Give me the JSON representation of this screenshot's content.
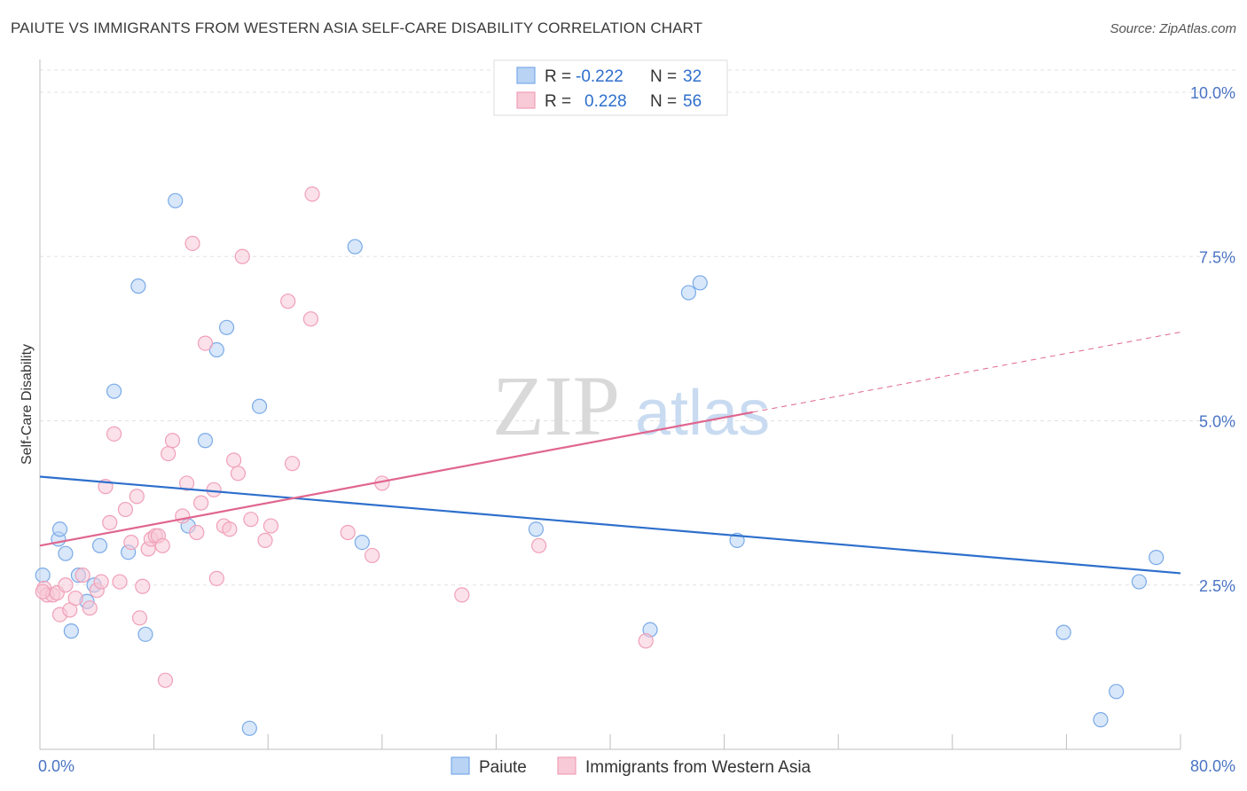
{
  "title": "PAIUTE VS IMMIGRANTS FROM WESTERN ASIA SELF-CARE DISABILITY CORRELATION CHART",
  "source": "Source: ZipAtlas.com",
  "watermark": {
    "zip": "ZIP",
    "atlas": "atlas"
  },
  "chart_data": {
    "type": "scatter",
    "ylabel": "Self-Care Disability",
    "xlim": [
      0,
      80
    ],
    "ylim": [
      0,
      10.5
    ],
    "x_ticks": [
      0,
      8,
      16,
      24,
      32,
      40,
      48,
      56,
      64,
      72,
      80
    ],
    "x_tick_labels": [
      {
        "value": 0,
        "label": "0.0%"
      },
      {
        "value": 80,
        "label": "80.0%"
      }
    ],
    "y_ticks": [
      {
        "value": 2.5,
        "label": "2.5%"
      },
      {
        "value": 5.0,
        "label": "5.0%"
      },
      {
        "value": 7.5,
        "label": "7.5%"
      },
      {
        "value": 10.0,
        "label": "10.0%"
      }
    ],
    "grid": true,
    "legend_position": "top-center",
    "series": [
      {
        "name": "Paiute",
        "color": "#7aaae8",
        "fill": "#b8d3f4",
        "line_color": "#2e6fcc",
        "R": "-0.222",
        "N": "32",
        "trend": {
          "x0": 0,
          "y0": 4.15,
          "x1": 80,
          "y1": 2.68,
          "solid_until": 80
        },
        "points": [
          [
            0.2,
            2.65
          ],
          [
            1.3,
            3.2
          ],
          [
            1.4,
            3.35
          ],
          [
            1.8,
            2.98
          ],
          [
            2.2,
            1.8
          ],
          [
            2.7,
            2.65
          ],
          [
            3.3,
            2.25
          ],
          [
            3.8,
            2.5
          ],
          [
            4.2,
            3.1
          ],
          [
            5.2,
            5.45
          ],
          [
            6.2,
            3.0
          ],
          [
            6.9,
            7.05
          ],
          [
            7.4,
            1.75
          ],
          [
            9.5,
            8.35
          ],
          [
            10.4,
            3.4
          ],
          [
            11.6,
            4.7
          ],
          [
            12.4,
            6.08
          ],
          [
            13.1,
            6.42
          ],
          [
            14.7,
            0.32
          ],
          [
            15.4,
            5.22
          ],
          [
            22.1,
            7.65
          ],
          [
            22.6,
            3.15
          ],
          [
            34.8,
            3.35
          ],
          [
            42.8,
            1.82
          ],
          [
            45.5,
            6.95
          ],
          [
            46.3,
            7.1
          ],
          [
            48.9,
            3.18
          ],
          [
            71.8,
            1.78
          ],
          [
            75.5,
            0.88
          ],
          [
            74.4,
            0.45
          ],
          [
            77.1,
            2.55
          ],
          [
            78.3,
            2.92
          ]
        ]
      },
      {
        "name": "Immigrants from Western Asia",
        "color": "#f0a0b8",
        "fill": "#f8c9d7",
        "line_color": "#e0668f",
        "R": "0.228",
        "N": "56",
        "trend": {
          "x0": 0,
          "y0": 3.1,
          "x1": 80,
          "y1": 6.35,
          "solid_until": 50
        },
        "points": [
          [
            0.3,
            2.45
          ],
          [
            0.5,
            2.35
          ],
          [
            0.9,
            2.35
          ],
          [
            1.2,
            2.38
          ],
          [
            1.4,
            2.05
          ],
          [
            1.8,
            2.5
          ],
          [
            2.1,
            2.12
          ],
          [
            2.5,
            2.3
          ],
          [
            3.0,
            2.65
          ],
          [
            3.5,
            2.15
          ],
          [
            4.0,
            2.42
          ],
          [
            4.3,
            2.55
          ],
          [
            4.6,
            4.0
          ],
          [
            4.9,
            3.45
          ],
          [
            5.2,
            4.8
          ],
          [
            5.6,
            2.55
          ],
          [
            6.0,
            3.65
          ],
          [
            6.4,
            3.15
          ],
          [
            6.8,
            3.85
          ],
          [
            7.0,
            2.0
          ],
          [
            7.2,
            2.48
          ],
          [
            7.6,
            3.05
          ],
          [
            7.8,
            3.2
          ],
          [
            8.1,
            3.25
          ],
          [
            8.3,
            3.25
          ],
          [
            8.6,
            3.1
          ],
          [
            8.8,
            1.05
          ],
          [
            9.0,
            4.5
          ],
          [
            9.3,
            4.7
          ],
          [
            10.0,
            3.55
          ],
          [
            10.3,
            4.05
          ],
          [
            10.7,
            7.7
          ],
          [
            11.0,
            3.3
          ],
          [
            11.3,
            3.75
          ],
          [
            11.6,
            6.18
          ],
          [
            12.2,
            3.95
          ],
          [
            12.4,
            2.6
          ],
          [
            12.9,
            3.4
          ],
          [
            13.3,
            3.35
          ],
          [
            13.6,
            4.4
          ],
          [
            13.9,
            4.2
          ],
          [
            14.2,
            7.5
          ],
          [
            14.8,
            3.5
          ],
          [
            15.8,
            3.18
          ],
          [
            16.2,
            3.4
          ],
          [
            17.4,
            6.82
          ],
          [
            17.7,
            4.35
          ],
          [
            19.0,
            6.55
          ],
          [
            19.1,
            8.45
          ],
          [
            21.6,
            3.3
          ],
          [
            23.3,
            2.95
          ],
          [
            24.0,
            4.05
          ],
          [
            29.6,
            2.35
          ],
          [
            35.0,
            3.1
          ],
          [
            42.5,
            1.65
          ],
          [
            0.2,
            2.4
          ]
        ]
      }
    ]
  },
  "bottom_legend": {
    "items": [
      "Paiute",
      "Immigrants from Western Asia"
    ]
  }
}
